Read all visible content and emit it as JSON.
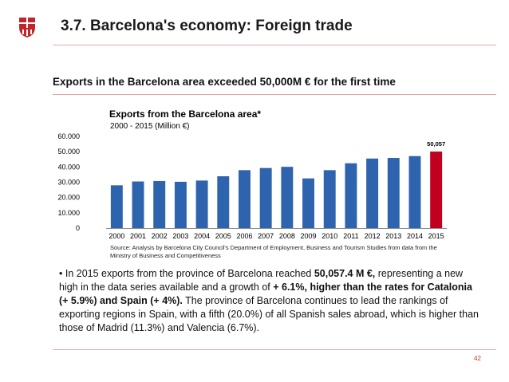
{
  "header": {
    "title": "3.7. Barcelona's economy: Foreign trade",
    "logo_icon": "barcelona-shield-icon",
    "accent_color": "#c0272d"
  },
  "headline": "Exports in the Barcelona area exceeded 50,000M € for the first time",
  "chart_data": {
    "type": "bar",
    "title": "Exports from the Barcelona area*",
    "subtitle": "2000 - 2015  (Million €)",
    "categories": [
      "2000",
      "2001",
      "2002",
      "2003",
      "2004",
      "2005",
      "2006",
      "2007",
      "2008",
      "2009",
      "2010",
      "2011",
      "2012",
      "2013",
      "2014",
      "2015"
    ],
    "values": [
      28000,
      30500,
      30800,
      30300,
      31100,
      33900,
      37900,
      39300,
      40100,
      32500,
      37900,
      42400,
      45500,
      45900,
      47100,
      50057
    ],
    "ylim": [
      0,
      60000
    ],
    "yticks": [
      0,
      10000,
      20000,
      30000,
      40000,
      50000,
      60000
    ],
    "ytick_labels": [
      "0",
      "10.000",
      "20.000",
      "30.000",
      "40.000",
      "50.000",
      "60.000"
    ],
    "data_labels": [
      {
        "category": "2015",
        "text": "50,057"
      }
    ],
    "bar_color": "#2e64ad",
    "highlight_color": "#c0001e",
    "highlight_category": "2015",
    "grid": false
  },
  "source": "Source: Analysis by Barcelona City Council's Department of Employment, Business and Tourism Studies from  data from the Ministry of Business and Competitiveness",
  "bullet": {
    "p1": "• In 2015 exports from the province of Barcelona reached ",
    "b1": "50,057.4 M €,",
    "p2": " representing a new high in the data series available and a growth of ",
    "b2": "+ 6.1%, higher than the rates for Catalonia (+ 5.9%) and Spain (+ 4%).",
    "p3": " The province of Barcelona continues to lead the rankings of exporting regions in Spain, with a fifth (20.0%) of all Spanish sales abroad, which is higher than those of Madrid (11.3%) and Valencia (6.7%)."
  },
  "page_number": "42"
}
